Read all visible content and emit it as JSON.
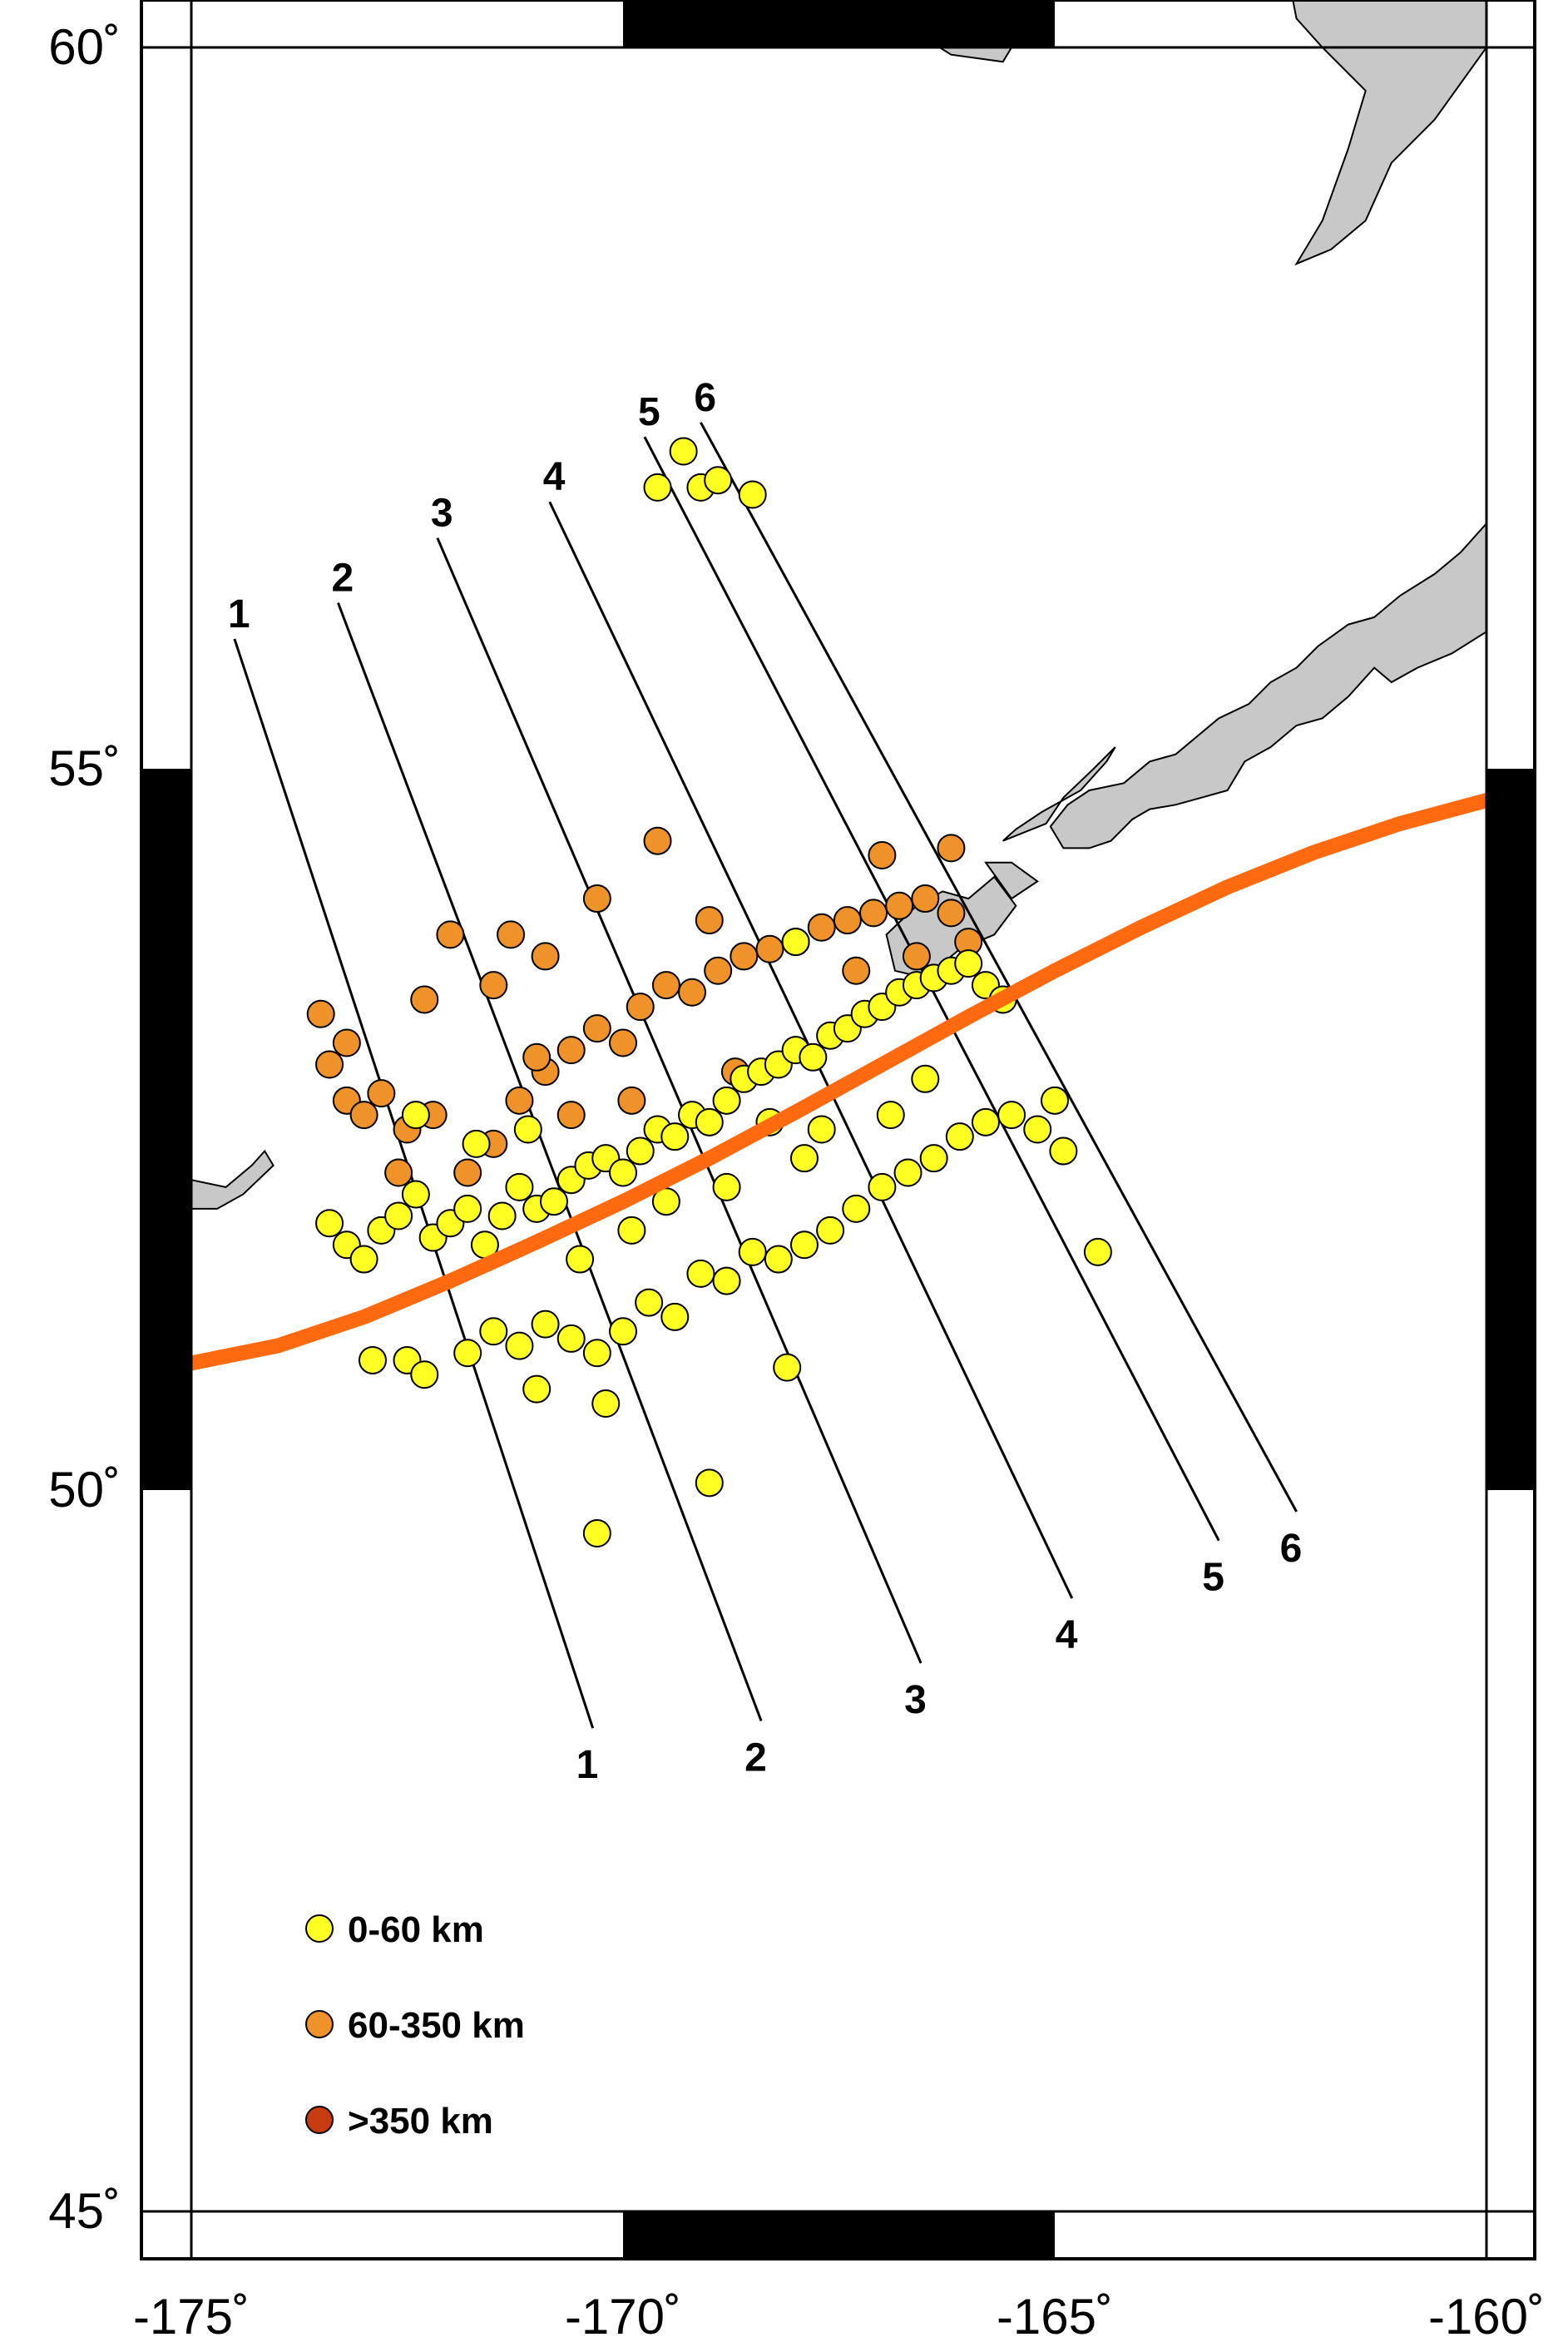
{
  "map": {
    "extent": {
      "lon_min": -175.5,
      "lon_max": -159.5,
      "lat_min": 44.5,
      "lat_max": 60.5
    },
    "frame_lon": [
      -175,
      -160
    ],
    "frame_lat": [
      45,
      60
    ],
    "colors": {
      "land": "#c8c8c8",
      "trench": "#ff6a10",
      "shallow": "#ffff24",
      "intermediate": "#f0922a",
      "deep": "#c83a10",
      "frame_black": "#000000"
    },
    "ticks_lon": [
      {
        "lon": -175,
        "label": "-175˚"
      },
      {
        "lon": -170,
        "label": "-170˚"
      },
      {
        "lon": -165,
        "label": "-165˚"
      },
      {
        "lon": -160,
        "label": "-160˚"
      }
    ],
    "ticks_lat": [
      {
        "lat": 60,
        "label": "60˚"
      },
      {
        "lat": 55,
        "label": "55˚"
      },
      {
        "lat": 50,
        "label": "50˚"
      },
      {
        "lat": 45,
        "label": "45˚"
      }
    ]
  },
  "trench": [
    [
      -175,
      50.88
    ],
    [
      -174,
      51.0
    ],
    [
      -173,
      51.2
    ],
    [
      -172,
      51.45
    ],
    [
      -171,
      51.72
    ],
    [
      -170,
      52.0
    ],
    [
      -169,
      52.3
    ],
    [
      -168,
      52.62
    ],
    [
      -167,
      52.95
    ],
    [
      -166,
      53.28
    ],
    [
      -165,
      53.6
    ],
    [
      -164,
      53.9
    ],
    [
      -163,
      54.18
    ],
    [
      -162,
      54.42
    ],
    [
      -161,
      54.62
    ],
    [
      -160,
      54.78
    ]
  ],
  "profiles": [
    {
      "id": "1",
      "start": [
        -174.5,
        55.9
      ],
      "end": [
        -170.35,
        48.35
      ],
      "start_label": "1",
      "end_label": "1"
    },
    {
      "id": "2",
      "start": [
        -173.3,
        56.15
      ],
      "end": [
        -168.4,
        48.4
      ],
      "start_label": "2",
      "end_label": "2"
    },
    {
      "id": "3",
      "start": [
        -172.15,
        56.6
      ],
      "end": [
        -166.55,
        48.8
      ],
      "start_label": "3",
      "end_label": "3"
    },
    {
      "id": "4",
      "start": [
        -170.85,
        56.85
      ],
      "end": [
        -164.8,
        49.25
      ],
      "start_label": "4",
      "end_label": "4"
    },
    {
      "id": "5",
      "start": [
        -169.75,
        57.3
      ],
      "end": [
        -163.1,
        49.65
      ],
      "start_label": "5",
      "end_label": "5"
    },
    {
      "id": "6",
      "start": [
        -169.1,
        57.4
      ],
      "end": [
        -162.2,
        49.85
      ],
      "start_label": "6",
      "end_label": "6"
    }
  ],
  "land": {
    "alaska_mainland": [
      [
        -160,
        60.5
      ],
      [
        -160,
        55.95
      ],
      [
        -160.4,
        55.8
      ],
      [
        -160.8,
        55.7
      ],
      [
        -161.1,
        55.6
      ],
      [
        -161.3,
        55.7
      ],
      [
        -161.6,
        55.5
      ],
      [
        -161.9,
        55.35
      ],
      [
        -162.2,
        55.3
      ],
      [
        -162.5,
        55.15
      ],
      [
        -162.8,
        55.05
      ],
      [
        -163,
        54.85
      ],
      [
        -163.3,
        54.8
      ],
      [
        -163.6,
        54.75
      ],
      [
        -163.9,
        54.72
      ],
      [
        -164.1,
        54.65
      ],
      [
        -164.35,
        54.5
      ],
      [
        -164.6,
        54.45
      ],
      [
        -164.9,
        54.45
      ],
      [
        -165.05,
        54.6
      ],
      [
        -164.85,
        54.75
      ],
      [
        -164.6,
        54.85
      ],
      [
        -164.2,
        54.9
      ],
      [
        -163.9,
        55.05
      ],
      [
        -163.6,
        55.1
      ],
      [
        -163.4,
        55.2
      ],
      [
        -163.1,
        55.35
      ],
      [
        -162.75,
        55.45
      ],
      [
        -162.5,
        55.6
      ],
      [
        -162.2,
        55.7
      ],
      [
        -161.95,
        55.85
      ],
      [
        -161.6,
        56.0
      ],
      [
        -161.3,
        56.05
      ],
      [
        -161,
        56.2
      ],
      [
        -160.6,
        56.35
      ],
      [
        -160.3,
        56.5
      ],
      [
        -160,
        56.7
      ]
    ],
    "bristol_bay": [
      [
        -160,
        60.5
      ],
      [
        -160,
        60.0
      ],
      [
        -160.6,
        59.5
      ],
      [
        -161.1,
        59.2
      ],
      [
        -161.4,
        58.8
      ],
      [
        -161.8,
        58.6
      ],
      [
        -162.2,
        58.5
      ],
      [
        -161.9,
        58.8
      ],
      [
        -161.6,
        59.3
      ],
      [
        -161.4,
        59.7
      ],
      [
        -161.9,
        60.0
      ],
      [
        -162.2,
        60.2
      ],
      [
        -162.3,
        60.5
      ]
    ],
    "nunivak": [
      [
        -166.8,
        60.5
      ],
      [
        -166.6,
        60.1
      ],
      [
        -166.2,
        59.95
      ],
      [
        -165.6,
        59.9
      ],
      [
        -165.4,
        60.1
      ],
      [
        -165.6,
        60.35
      ],
      [
        -166,
        60.5
      ]
    ],
    "unimak": [
      [
        -165.6,
        54.5
      ],
      [
        -165.1,
        54.62
      ],
      [
        -164.9,
        54.8
      ],
      [
        -164.55,
        55.0
      ],
      [
        -164.3,
        55.15
      ],
      [
        -164.4,
        55.05
      ],
      [
        -164.7,
        54.85
      ],
      [
        -165.15,
        54.7
      ],
      [
        -165.45,
        54.58
      ]
    ],
    "unalaska": [
      [
        -166.95,
        53.85
      ],
      [
        -166.6,
        54.05
      ],
      [
        -166.3,
        54.15
      ],
      [
        -166.0,
        54.1
      ],
      [
        -165.7,
        54.25
      ],
      [
        -165.45,
        54.05
      ],
      [
        -165.7,
        53.85
      ],
      [
        -166.1,
        53.75
      ],
      [
        -166.5,
        53.55
      ],
      [
        -166.85,
        53.6
      ]
    ],
    "unalaska_east": [
      [
        -165.8,
        54.35
      ],
      [
        -165.5,
        54.35
      ],
      [
        -165.2,
        54.22
      ],
      [
        -165.5,
        54.1
      ]
    ],
    "atka": [
      [
        -175,
        52.15
      ],
      [
        -174.6,
        52.1
      ],
      [
        -174.3,
        52.25
      ],
      [
        -174.15,
        52.35
      ],
      [
        -174.05,
        52.25
      ],
      [
        -174.4,
        52.05
      ],
      [
        -174.7,
        51.95
      ],
      [
        -175,
        51.95
      ]
    ]
  },
  "earthquakes": {
    "shallow": [
      [
        -173.4,
        51.85
      ],
      [
        -173.2,
        51.7
      ],
      [
        -173.0,
        51.6
      ],
      [
        -172.8,
        51.8
      ],
      [
        -172.6,
        51.9
      ],
      [
        -172.4,
        52.05
      ],
      [
        -172.2,
        51.75
      ],
      [
        -172.0,
        51.85
      ],
      [
        -171.8,
        51.95
      ],
      [
        -171.6,
        51.7
      ],
      [
        -171.4,
        51.9
      ],
      [
        -171.2,
        52.1
      ],
      [
        -171.0,
        51.95
      ],
      [
        -170.8,
        52.0
      ],
      [
        -170.6,
        52.15
      ],
      [
        -170.4,
        52.25
      ],
      [
        -170.2,
        52.3
      ],
      [
        -170.0,
        52.2
      ],
      [
        -169.8,
        52.35
      ],
      [
        -169.6,
        52.5
      ],
      [
        -169.4,
        52.45
      ],
      [
        -169.2,
        52.6
      ],
      [
        -169.0,
        52.55
      ],
      [
        -168.8,
        52.7
      ],
      [
        -168.6,
        52.85
      ],
      [
        -168.4,
        52.9
      ],
      [
        -168.2,
        52.95
      ],
      [
        -168.0,
        53.05
      ],
      [
        -167.8,
        53.0
      ],
      [
        -167.6,
        53.15
      ],
      [
        -167.4,
        53.2
      ],
      [
        -167.2,
        53.3
      ],
      [
        -167.0,
        53.35
      ],
      [
        -166.8,
        53.45
      ],
      [
        -166.6,
        53.5
      ],
      [
        -166.4,
        53.55
      ],
      [
        -166.2,
        53.6
      ],
      [
        -166.0,
        53.65
      ],
      [
        -165.8,
        53.5
      ],
      [
        -165.6,
        53.4
      ],
      [
        -172.5,
        50.9
      ],
      [
        -172.3,
        50.8
      ],
      [
        -171.8,
        50.95
      ],
      [
        -171.5,
        51.1
      ],
      [
        -171.2,
        51.0
      ],
      [
        -170.9,
        51.15
      ],
      [
        -170.6,
        51.05
      ],
      [
        -170.3,
        50.95
      ],
      [
        -170.0,
        51.1
      ],
      [
        -169.7,
        51.3
      ],
      [
        -169.4,
        51.2
      ],
      [
        -169.1,
        51.5
      ],
      [
        -168.8,
        51.45
      ],
      [
        -168.5,
        51.65
      ],
      [
        -168.2,
        51.6
      ],
      [
        -167.9,
        51.7
      ],
      [
        -167.6,
        51.8
      ],
      [
        -167.3,
        51.95
      ],
      [
        -167.0,
        52.1
      ],
      [
        -166.7,
        52.2
      ],
      [
        -166.4,
        52.3
      ],
      [
        -166.1,
        52.45
      ],
      [
        -165.8,
        52.55
      ],
      [
        -165.5,
        52.6
      ],
      [
        -165.2,
        52.5
      ],
      [
        -165.0,
        52.7
      ],
      [
        -164.9,
        52.35
      ],
      [
        -164.5,
        51.65
      ],
      [
        -170.3,
        49.7
      ],
      [
        -169.0,
        50.05
      ],
      [
        -168.1,
        50.85
      ],
      [
        -169.3,
        57.2
      ],
      [
        -169.1,
        56.95
      ],
      [
        -168.9,
        57.0
      ],
      [
        -168.5,
        56.9
      ],
      [
        -169.6,
        56.95
      ],
      [
        -168.0,
        53.8
      ],
      [
        -172.9,
        50.9
      ],
      [
        -171.0,
        50.7
      ],
      [
        -170.2,
        50.6
      ],
      [
        -168.8,
        52.1
      ],
      [
        -167.9,
        52.3
      ],
      [
        -168.3,
        52.55
      ],
      [
        -169.9,
        51.8
      ],
      [
        -170.5,
        51.6
      ],
      [
        -171.7,
        52.4
      ],
      [
        -172.4,
        52.6
      ],
      [
        -171.1,
        52.5
      ],
      [
        -169.5,
        52.0
      ],
      [
        -166.9,
        52.6
      ],
      [
        -166.5,
        52.85
      ],
      [
        -167.7,
        52.5
      ]
    ],
    "intermediate": [
      [
        -173.5,
        53.3
      ],
      [
        -173.4,
        52.95
      ],
      [
        -173.2,
        52.7
      ],
      [
        -173.0,
        52.6
      ],
      [
        -172.8,
        52.75
      ],
      [
        -172.5,
        52.5
      ],
      [
        -172.2,
        52.6
      ],
      [
        -171.8,
        52.2
      ],
      [
        -171.5,
        52.4
      ],
      [
        -171.2,
        52.7
      ],
      [
        -170.9,
        52.9
      ],
      [
        -170.6,
        53.05
      ],
      [
        -170.3,
        53.2
      ],
      [
        -170.0,
        53.1
      ],
      [
        -169.8,
        53.35
      ],
      [
        -169.5,
        53.5
      ],
      [
        -169.2,
        53.45
      ],
      [
        -168.9,
        53.6
      ],
      [
        -168.6,
        53.7
      ],
      [
        -168.3,
        53.75
      ],
      [
        -168.0,
        53.8
      ],
      [
        -167.7,
        53.9
      ],
      [
        -167.4,
        53.95
      ],
      [
        -167.1,
        54.0
      ],
      [
        -166.8,
        54.05
      ],
      [
        -166.5,
        54.1
      ],
      [
        -166.2,
        54.0
      ],
      [
        -166.0,
        53.8
      ],
      [
        -167.0,
        54.4
      ],
      [
        -166.2,
        54.45
      ],
      [
        -169.6,
        54.5
      ],
      [
        -170.3,
        54.1
      ],
      [
        -170.9,
        53.7
      ],
      [
        -171.5,
        53.5
      ],
      [
        -172.0,
        53.85
      ],
      [
        -172.3,
        53.4
      ],
      [
        -171.0,
        53.0
      ],
      [
        -169.9,
        52.7
      ],
      [
        -168.7,
        52.9
      ],
      [
        -167.3,
        53.6
      ],
      [
        -166.6,
        53.7
      ],
      [
        -170.6,
        52.6
      ],
      [
        -172.6,
        52.2
      ],
      [
        -173.2,
        53.1
      ],
      [
        -171.3,
        53.85
      ],
      [
        -169.0,
        53.95
      ]
    ]
  },
  "legend": [
    {
      "label": "0-60 km",
      "class": "shallow"
    },
    {
      "label": "60-350 km",
      "class": "intermediate"
    },
    {
      "label": ">350 km",
      "class": "deep"
    }
  ]
}
